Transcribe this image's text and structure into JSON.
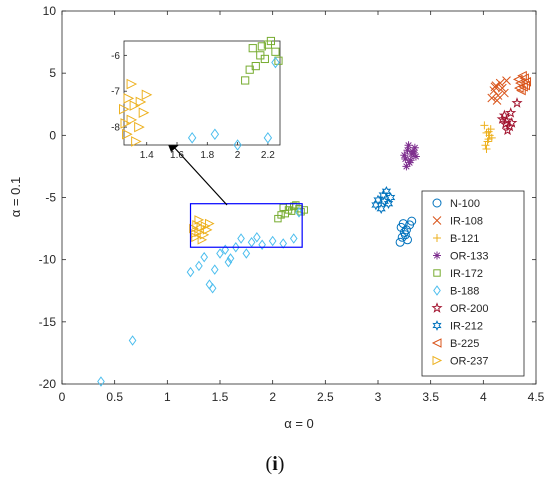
{
  "chart_data": {
    "type": "scatter",
    "title": "",
    "xlabel": "α = 0",
    "ylabel": "α = 0.1",
    "xlim": [
      0,
      4.5
    ],
    "ylim": [
      -20,
      10
    ],
    "xticks": [
      "0",
      "0.5",
      "1",
      "1.5",
      "2",
      "2.5",
      "3",
      "3.5",
      "4",
      "4.5"
    ],
    "yticks": [
      "10",
      "5",
      "0",
      "-5",
      "-10",
      "-15",
      "-20"
    ],
    "grid": false,
    "legend_position": "right",
    "series": [
      {
        "name": "N-100",
        "marker": "circle",
        "color": "#0072BD",
        "points": [
          [
            3.22,
            -7.4
          ],
          [
            3.25,
            -7.8
          ],
          [
            3.23,
            -8.2
          ],
          [
            3.27,
            -7.6
          ],
          [
            3.21,
            -8.6
          ],
          [
            3.3,
            -7.2
          ],
          [
            3.26,
            -8.0
          ],
          [
            3.32,
            -6.9
          ],
          [
            3.24,
            -7.1
          ],
          [
            3.28,
            -8.4
          ]
        ]
      },
      {
        "name": "IR-108",
        "marker": "x",
        "color": "#D95319",
        "points": [
          [
            4.1,
            3.6
          ],
          [
            4.14,
            3.2
          ],
          [
            4.12,
            4.0
          ],
          [
            4.18,
            3.8
          ],
          [
            4.08,
            3.0
          ],
          [
            4.16,
            4.2
          ],
          [
            4.2,
            3.4
          ],
          [
            4.13,
            2.8
          ],
          [
            4.22,
            4.4
          ],
          [
            4.11,
            3.9
          ]
        ]
      },
      {
        "name": "B-121",
        "marker": "plus",
        "color": "#EDB120",
        "points": [
          [
            4.03,
            0.2
          ],
          [
            4.05,
            -0.3
          ],
          [
            4.02,
            -0.8
          ],
          [
            4.07,
            0.5
          ],
          [
            4.04,
            -0.5
          ],
          [
            4.06,
            0.0
          ],
          [
            4.01,
            0.8
          ],
          [
            4.08,
            -0.2
          ],
          [
            4.03,
            -1.1
          ],
          [
            4.05,
            0.3
          ]
        ]
      },
      {
        "name": "OR-133",
        "marker": "asterisk",
        "color": "#7E2F8E",
        "points": [
          [
            3.28,
            -1.2
          ],
          [
            3.32,
            -1.5
          ],
          [
            3.26,
            -1.9
          ],
          [
            3.35,
            -1.0
          ],
          [
            3.3,
            -2.2
          ],
          [
            3.33,
            -1.3
          ],
          [
            3.27,
            -2.5
          ],
          [
            3.36,
            -1.7
          ],
          [
            3.29,
            -0.8
          ],
          [
            3.31,
            -2.0
          ],
          [
            3.34,
            -1.4
          ],
          [
            3.25,
            -1.6
          ]
        ]
      },
      {
        "name": "IR-172",
        "marker": "square",
        "color": "#77AC30",
        "points": [
          [
            2.1,
            -5.8
          ],
          [
            2.15,
            -6.0
          ],
          [
            2.2,
            -5.7
          ],
          [
            2.25,
            -5.9
          ],
          [
            2.12,
            -6.3
          ],
          [
            2.18,
            -6.1
          ],
          [
            2.3,
            -6.0
          ],
          [
            2.05,
            -6.7
          ],
          [
            2.22,
            -5.6
          ],
          [
            2.08,
            -6.4
          ],
          [
            2.16,
            -5.75
          ],
          [
            2.27,
            -6.15
          ]
        ]
      },
      {
        "name": "B-188",
        "marker": "diamond",
        "color": "#4DBEEE",
        "points": [
          [
            0.37,
            -19.8
          ],
          [
            0.67,
            -16.5
          ],
          [
            1.22,
            -11.0
          ],
          [
            1.3,
            -10.5
          ],
          [
            1.35,
            -9.8
          ],
          [
            1.4,
            -12.0
          ],
          [
            1.43,
            -12.3
          ],
          [
            1.5,
            -9.5
          ],
          [
            1.58,
            -10.2
          ],
          [
            1.65,
            -9.0
          ],
          [
            1.7,
            -8.3
          ],
          [
            1.8,
            -8.6
          ],
          [
            1.9,
            -8.8
          ],
          [
            2.0,
            -8.5
          ],
          [
            1.75,
            -9.5
          ],
          [
            1.6,
            -9.9
          ],
          [
            1.45,
            -10.8
          ],
          [
            2.1,
            -8.7
          ],
          [
            2.2,
            -8.3
          ],
          [
            2.25,
            -6.2
          ],
          [
            1.85,
            -8.2
          ],
          [
            1.55,
            -9.2
          ]
        ]
      },
      {
        "name": "OR-200",
        "marker": "pentagram",
        "color": "#A2142F",
        "points": [
          [
            4.22,
            1.2
          ],
          [
            4.25,
            0.7
          ],
          [
            4.2,
            1.6
          ],
          [
            4.27,
            1.0
          ],
          [
            4.23,
            0.4
          ],
          [
            4.18,
            1.3
          ],
          [
            4.26,
            1.8
          ],
          [
            4.21,
            0.9
          ],
          [
            4.32,
            2.6
          ]
        ]
      },
      {
        "name": "IR-212",
        "marker": "hexagram",
        "color": "#0072BD",
        "points": [
          [
            3.0,
            -5.2
          ],
          [
            3.05,
            -4.8
          ],
          [
            3.1,
            -5.5
          ],
          [
            3.03,
            -5.9
          ],
          [
            3.08,
            -4.5
          ],
          [
            2.98,
            -5.6
          ],
          [
            3.12,
            -5.0
          ],
          [
            3.06,
            -5.3
          ]
        ]
      },
      {
        "name": "B-225",
        "marker": "triangle-left",
        "color": "#D95319",
        "points": [
          [
            4.35,
            4.2
          ],
          [
            4.38,
            3.9
          ],
          [
            4.33,
            4.5
          ],
          [
            4.4,
            4.0
          ],
          [
            4.36,
            3.6
          ],
          [
            4.39,
            4.6
          ],
          [
            4.34,
            3.8
          ],
          [
            4.41,
            4.3
          ],
          [
            4.37,
            4.8
          ]
        ]
      },
      {
        "name": "OR-237",
        "marker": "triangle-right",
        "color": "#EDB120",
        "points": [
          [
            1.25,
            -7.5
          ],
          [
            1.3,
            -7.8
          ],
          [
            1.28,
            -7.2
          ],
          [
            1.35,
            -8.0
          ],
          [
            1.32,
            -7.4
          ],
          [
            1.27,
            -8.2
          ],
          [
            1.38,
            -7.6
          ],
          [
            1.3,
            -6.8
          ],
          [
            1.33,
            -8.4
          ],
          [
            1.4,
            -7.1
          ],
          [
            1.26,
            -7.9
          ],
          [
            1.36,
            -7.3
          ]
        ]
      }
    ],
    "inset": {
      "xlim": [
        1.25,
        2.28
      ],
      "ylim": [
        -8.5,
        -5.6
      ],
      "xticks": [
        "1.4",
        "1.6",
        "1.8",
        "2",
        "2.2"
      ],
      "yticks": [
        "-6",
        "-7",
        "-8"
      ],
      "zoom_box": {
        "x": [
          1.22,
          2.28
        ],
        "y": [
          -9.0,
          -5.5
        ]
      }
    }
  },
  "caption": {
    "open": "(",
    "letter": "i",
    "close": ")"
  }
}
